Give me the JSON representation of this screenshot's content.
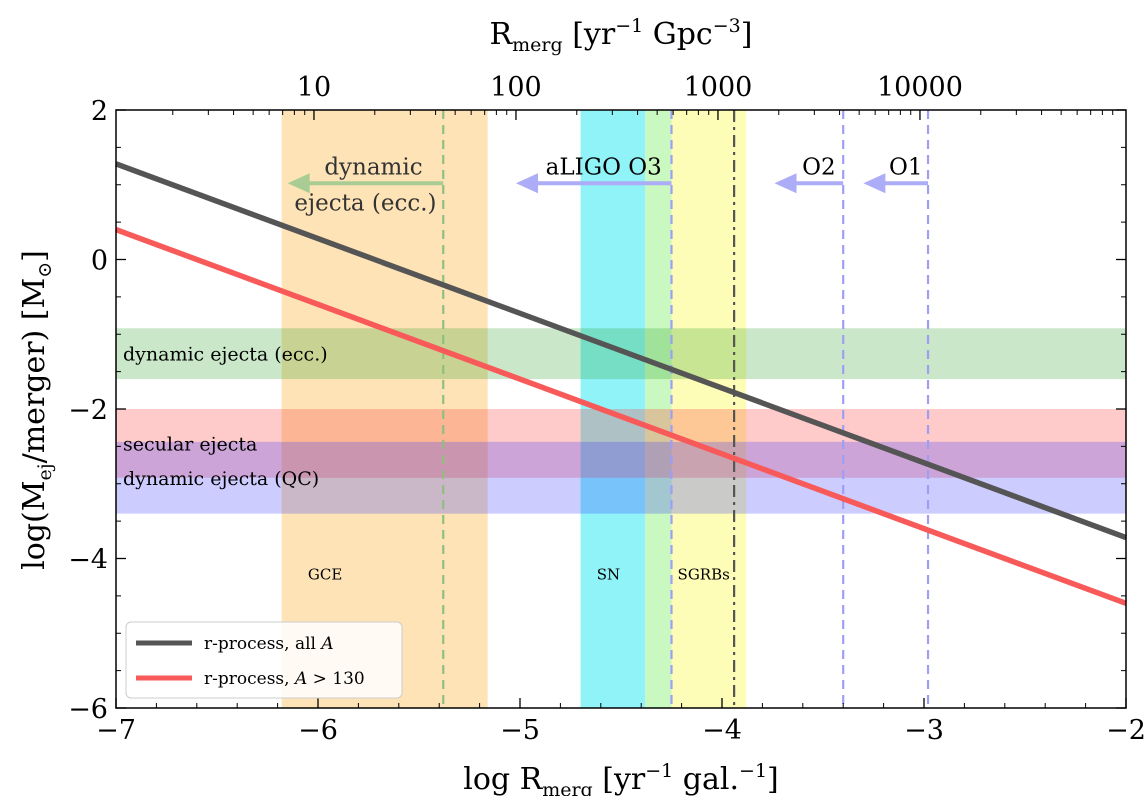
{
  "chart_data": {
    "type": "line",
    "xlabel": "log R",
    "xlabel_sub": "merg",
    "xlabel_unit": " [yr",
    "xlabel_unit_exp": "−1",
    "xlabel_unit_tail": " gal.",
    "xlabel_unit_tail_exp": "−1",
    "xlabel_close": "]",
    "top_xlabel": "R",
    "top_xlabel_sub": "merg",
    "top_xlabel_unit": " [yr",
    "top_xlabel_unit_exp": "−1",
    "top_xlabel_unit_mid": " Gpc",
    "top_xlabel_unit_mid_exp": "−3",
    "top_xlabel_close": "]",
    "ylabel": "log(M",
    "ylabel_sub": "ej",
    "ylabel_tail": "/merger) [M",
    "ylabel_tail_sub": "⊙",
    "ylabel_close": "]",
    "xlim": [
      -7,
      -2
    ],
    "ylim": [
      -6,
      2
    ],
    "x_ticks": [
      {
        "value": -7,
        "label": "−7"
      },
      {
        "value": -6,
        "label": "−6"
      },
      {
        "value": -5,
        "label": "−5"
      },
      {
        "value": -4,
        "label": "−4"
      },
      {
        "value": -3,
        "label": "−3"
      },
      {
        "value": -2,
        "label": "−2"
      }
    ],
    "y_ticks": [
      {
        "value": 2,
        "label": "2"
      },
      {
        "value": 0,
        "label": "0"
      },
      {
        "value": -2,
        "label": "−2"
      },
      {
        "value": -4,
        "label": "−4"
      },
      {
        "value": -6,
        "label": "−6"
      }
    ],
    "top_ticks": [
      {
        "value": -6.02,
        "label": "10"
      },
      {
        "value": -5.02,
        "label": "100"
      },
      {
        "value": -4.02,
        "label": "1000"
      },
      {
        "value": -3.02,
        "label": "10000"
      }
    ],
    "series": [
      {
        "name": "r-process, all ",
        "name_italic": "A",
        "color": "#555555",
        "x": [
          -7,
          -2
        ],
        "y": [
          1.28,
          -3.72
        ]
      },
      {
        "name": "r-process, ",
        "name_italic": "A",
        "name_tail": " > 130",
        "color": "#f85a5a",
        "x": [
          -7,
          -2
        ],
        "y": [
          0.4,
          -4.6
        ]
      }
    ],
    "vertical_bands": [
      {
        "label": "GCE",
        "x0": -6.18,
        "x1": -5.16,
        "color": "#fde3b6",
        "label_x": -6.05
      },
      {
        "label": "SN",
        "x0": -4.7,
        "x1": -4.38,
        "color": "#8ff3f8",
        "label_x": -4.62
      },
      {
        "label": "",
        "x0": -4.38,
        "x1": -4.25,
        "color": "#c9f8c0",
        "label_x": null
      },
      {
        "label": "SGRBs",
        "x0": -4.25,
        "x1": -3.88,
        "color": "#fdfdb7",
        "label_x": -4.22
      }
    ],
    "horizontal_bands": [
      {
        "label": "dynamic ejecta (ecc.)",
        "y0": -1.6,
        "y1": -0.92,
        "color": "#2ca02c",
        "opacity": 0.25
      },
      {
        "label": "secular ejecta",
        "y0": -2.92,
        "y1": -2.0,
        "color": "#ff4040",
        "opacity": 0.28
      },
      {
        "label": "dynamic ejecta (QC)",
        "y0": -3.4,
        "y1": -2.44,
        "color": "#3333ff",
        "opacity": 0.25
      }
    ],
    "vertical_lines": [
      {
        "x": -5.38,
        "color": "#8fbf80",
        "style": "dashed"
      },
      {
        "x": -4.25,
        "color": "#9e9ef5",
        "style": "dashed"
      },
      {
        "x": -3.94,
        "color": "#555555",
        "style": "dashdot"
      },
      {
        "x": -3.4,
        "color": "#9e9ef5",
        "style": "dashed"
      },
      {
        "x": -2.98,
        "color": "#9e9ef5",
        "style": "dashed"
      }
    ],
    "arrows": [
      {
        "label": "dynamic",
        "label2": "ejecta (ecc.)",
        "from": -5.38,
        "to": -6.15,
        "y": 1.02,
        "color": "#a8cc94"
      },
      {
        "label": "aLIGO O3",
        "label2": "",
        "from": -4.25,
        "to": -5.02,
        "y": 1.02,
        "color": "#acacf7"
      },
      {
        "label": "O2",
        "label2": "",
        "from": -3.4,
        "to": -3.74,
        "y": 1.02,
        "color": "#acacf7"
      },
      {
        "label": "O1",
        "label2": "",
        "from": -2.98,
        "to": -3.3,
        "y": 1.02,
        "color": "#acacf7"
      }
    ],
    "legend": {
      "position": "lower-left"
    },
    "grid": false
  }
}
